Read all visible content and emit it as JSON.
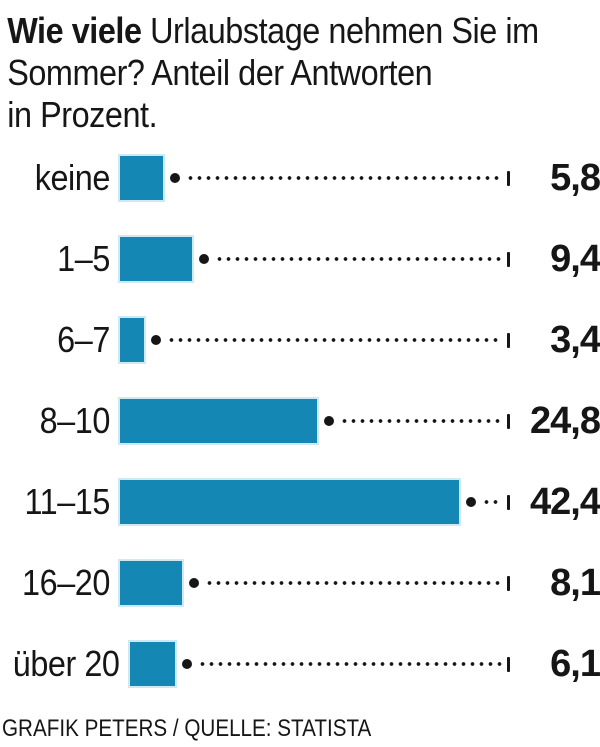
{
  "title": {
    "bold": "Wie viele",
    "line1_rest": " Urlaubstage nehmen Sie im",
    "line2": "Sommer? Anteil der Antworten",
    "line3": "in Prozent."
  },
  "chart_data": {
    "type": "bar",
    "orientation": "horizontal",
    "title": "Wie viele Urlaubstage nehmen Sie im Sommer? Anteil der Antworten in Prozent.",
    "categories": [
      "keine",
      "1–5",
      "6–7",
      "8–10",
      "11–15",
      "16–20",
      "über 20"
    ],
    "values": [
      5.8,
      9.4,
      3.4,
      24.8,
      42.4,
      8.1,
      6.1
    ],
    "value_labels": [
      "5,8",
      "9,4",
      "3,4",
      "24,8",
      "42,4",
      "8,1",
      "6,1"
    ],
    "unit": "Prozent",
    "xlabel": "",
    "ylabel": "",
    "xlim": [
      0,
      45
    ],
    "grid": false,
    "legend": "none",
    "bar_color": "#1587b5",
    "bar_edge_color": "#cfe9f2",
    "text_color": "#161616",
    "leader_style": "dotted"
  },
  "footer": {
    "credit": "GRAFIK PETERS / QUELLE: STATISTA"
  }
}
